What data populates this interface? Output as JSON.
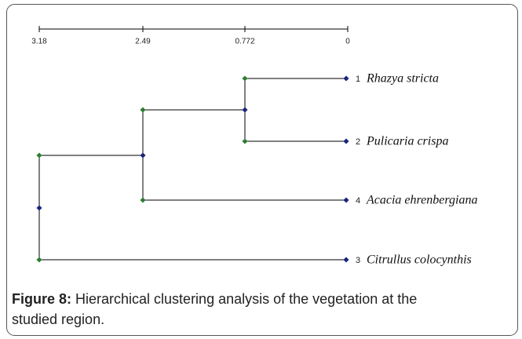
{
  "axis": {
    "ticks": [
      "3.18",
      "2.49",
      "0.772",
      "0"
    ]
  },
  "leaves": [
    {
      "number": "1",
      "name": "Rhazya stricta"
    },
    {
      "number": "2",
      "name": "Pulicaria crispa"
    },
    {
      "number": "4",
      "name": "Acacia ehrenbergiana"
    },
    {
      "number": "3",
      "name": "Citrullus colocynthis"
    }
  ],
  "caption": {
    "label": "Figure 8:",
    "text": "Hierarchical clustering analysis of the vegetation at the",
    "text2": "studied region."
  }
}
